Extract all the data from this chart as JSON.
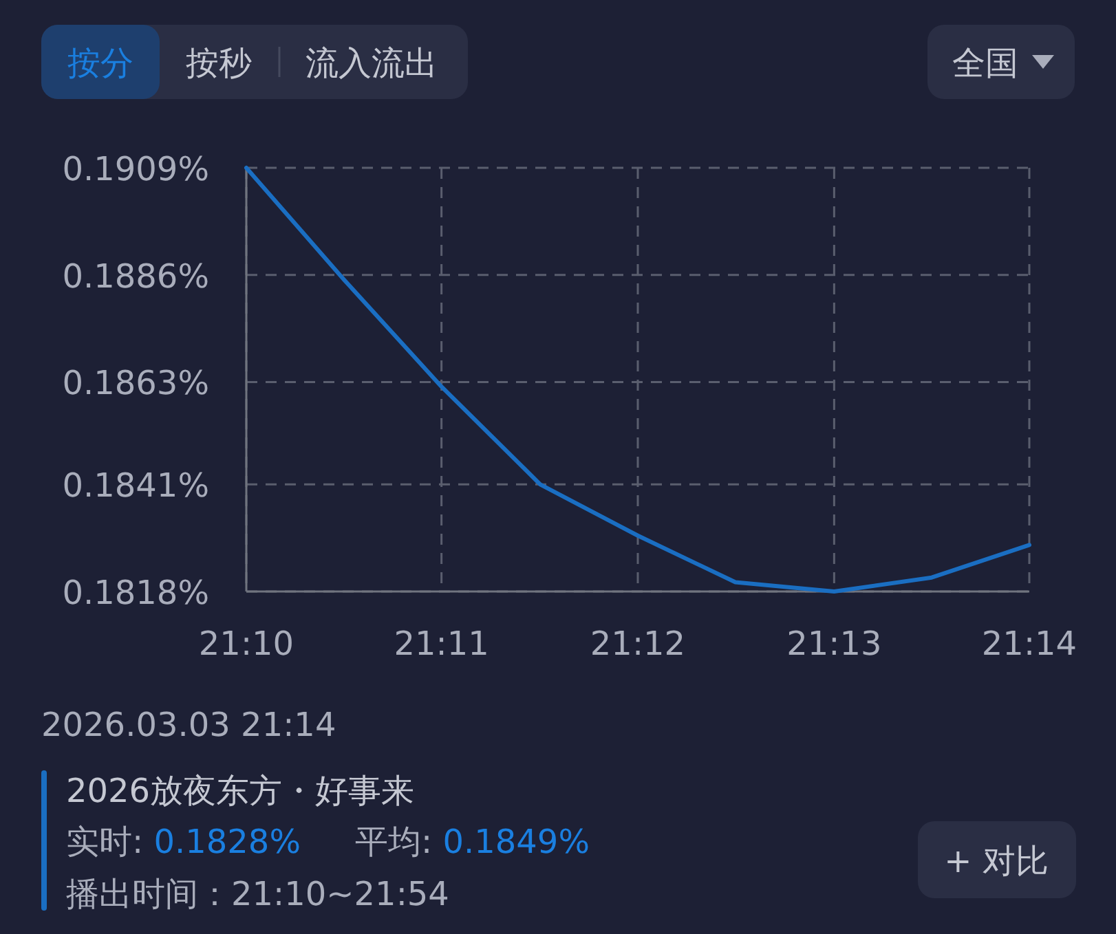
{
  "chart_data": {
    "type": "line",
    "x": [
      21.1667,
      21.175,
      21.1833,
      21.1917,
      21.2,
      21.2083,
      21.2167,
      21.225,
      21.2333
    ],
    "series": [
      {
        "color": "#1a6ec2",
        "values": [
          0.1909,
          0.1885,
          0.1862,
          0.1841,
          0.183,
          0.182,
          0.1818,
          0.1821,
          0.1828
        ]
      }
    ],
    "xlim": [
      21.1667,
      21.2333
    ],
    "xticks": [
      {
        "value": 21.1667,
        "label": "21:10"
      },
      {
        "value": 21.1833,
        "label": "21:11"
      },
      {
        "value": 21.2,
        "label": "21:12"
      },
      {
        "value": 21.2167,
        "label": "21:13"
      },
      {
        "value": 21.2333,
        "label": "21:14"
      }
    ],
    "ylim": [
      0.1818,
      0.1909
    ],
    "yticks": [
      {
        "value": 0.1818,
        "label": "0.1818%"
      },
      {
        "value": 0.1841,
        "label": "0.1841%"
      },
      {
        "value": 0.1863,
        "label": "0.1863%"
      },
      {
        "value": 0.1886,
        "label": "0.1886%"
      },
      {
        "value": 0.1909,
        "label": "0.1909%"
      }
    ],
    "grid": true,
    "line_style": "solid",
    "marker": "none",
    "annotations": [
      "按分",
      "按秒",
      "流入流出",
      "全国",
      "2026.03.03 21:14",
      "2026放夜东方・好事来",
      "实时: 0.1828%",
      "平均: 0.1849%",
      "播出时间：21:10~21:54",
      "+ 对比"
    ]
  }
}
